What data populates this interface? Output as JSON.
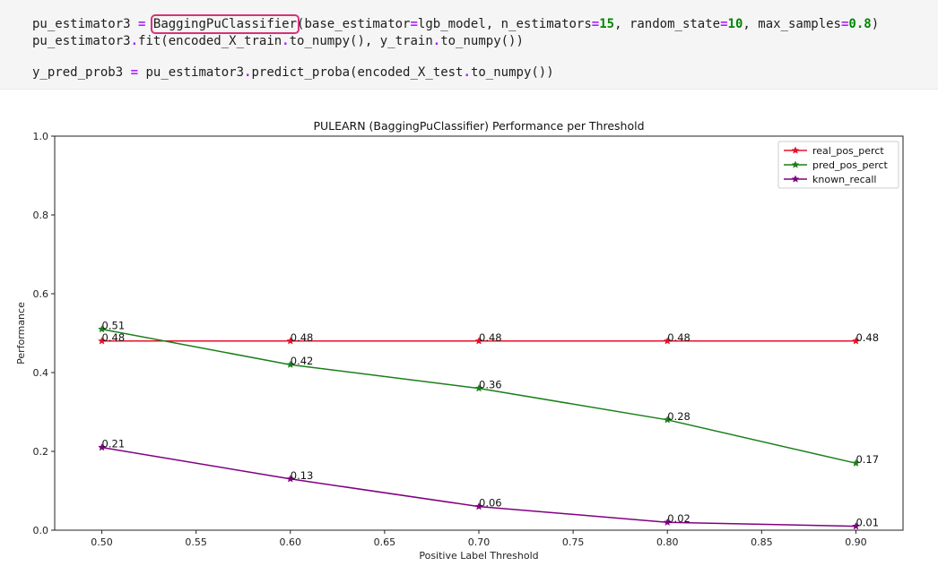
{
  "code": {
    "line1": {
      "var": "pu_estimator3",
      "op": "=",
      "cls": "BaggingPuClassifier",
      "args_open": "(base_estimator",
      "arg1": "lgb_model, n_estimators",
      "n_estimators": "15",
      "arg2": ", random_state",
      "random_state": "10",
      "arg3": ", max_samples",
      "max_samples": "0.8",
      "close": ")"
    },
    "line2": {
      "obj": "pu_estimator3",
      "fit": "fit(encoded_X_train",
      "m1": "to_numpy(), y_train",
      "m2": "to_numpy())"
    },
    "line3": {
      "var": "y_pred_prob3",
      "op": "=",
      "obj": "pu_estimator3",
      "call": "predict_proba(encoded_X_test",
      "m1": "to_numpy())"
    }
  },
  "chart_data": {
    "type": "line",
    "title": "PULEARN (BaggingPuClassifier) Performance per Threshold",
    "xlabel": "Positive Label Threshold",
    "ylabel": "Performance",
    "x": [
      0.5,
      0.6,
      0.7,
      0.8,
      0.9
    ],
    "xlim": [
      0.475,
      0.925
    ],
    "ylim": [
      0.0,
      1.0
    ],
    "xticks": [
      "0.50",
      "0.55",
      "0.60",
      "0.65",
      "0.70",
      "0.75",
      "0.80",
      "0.85",
      "0.90"
    ],
    "xtick_values": [
      0.5,
      0.55,
      0.6,
      0.65,
      0.7,
      0.75,
      0.8,
      0.85,
      0.9
    ],
    "yticks": [
      "0.0",
      "0.2",
      "0.4",
      "0.6",
      "0.8",
      "1.0"
    ],
    "ytick_values": [
      0.0,
      0.2,
      0.4,
      0.6,
      0.8,
      1.0
    ],
    "grid": false,
    "legend_position": "top-right",
    "series": [
      {
        "name": "real_pos_perct",
        "color": "#e8102a",
        "values": [
          0.48,
          0.48,
          0.48,
          0.48,
          0.48
        ],
        "labels": [
          "0.48",
          "0.48",
          "0.48",
          "0.48",
          "0.48"
        ]
      },
      {
        "name": "pred_pos_perct",
        "color": "#1a7f1a",
        "values": [
          0.51,
          0.42,
          0.36,
          0.28,
          0.17
        ],
        "labels": [
          "0.51",
          "0.42",
          "0.36",
          "0.28",
          "0.17"
        ]
      },
      {
        "name": "known_recall",
        "color": "#800080",
        "values": [
          0.21,
          0.13,
          0.06,
          0.02,
          0.01
        ],
        "labels": [
          "0.21",
          "0.13",
          "0.06",
          "0.02",
          "0.01"
        ]
      }
    ]
  }
}
